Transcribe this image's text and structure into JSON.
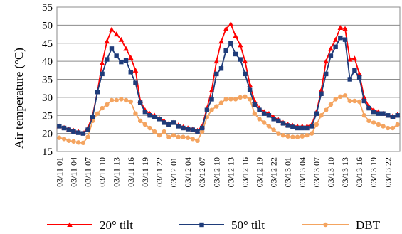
{
  "chart_data": {
    "type": "line",
    "ylabel": "Air temperature (°C)",
    "xlabel": "",
    "ylim": [
      15,
      55
    ],
    "yticks": [
      15,
      20,
      25,
      30,
      35,
      40,
      45,
      50,
      55
    ],
    "grid": true,
    "legend_position": "bottom",
    "x": [
      "03/11 01",
      "03/11 02",
      "03/11 03",
      "03/11 04",
      "03/11 05",
      "03/11 06",
      "03/11 07",
      "03/11 08",
      "03/11 09",
      "03/11 10",
      "03/11 11",
      "03/11 12",
      "03/11 13",
      "03/11 14",
      "03/11 15",
      "03/11 16",
      "03/11 17",
      "03/11 18",
      "03/11 19",
      "03/11 20",
      "03/11 21",
      "03/11 22",
      "03/11 23",
      "03/11 24",
      "03/12 01",
      "03/12 02",
      "03/12 03",
      "03/12 04",
      "03/12 05",
      "03/12 06",
      "03/12 07",
      "03/12 08",
      "03/12 09",
      "03/12 10",
      "03/12 11",
      "03/12 12",
      "03/12 13",
      "03/12 14",
      "03/12 15",
      "03/12 16",
      "03/12 17",
      "03/12 18",
      "03/12 19",
      "03/12 20",
      "03/12 21",
      "03/12 22",
      "03/12 23",
      "03/12 24",
      "03/13 01",
      "03/13 02",
      "03/13 03",
      "03/13 04",
      "03/13 05",
      "03/13 06",
      "03/13 07",
      "03/13 08",
      "03/13 09",
      "03/13 10",
      "03/13 11",
      "03/13 12",
      "03/13 13",
      "03/13 14",
      "03/13 15",
      "03/13 16",
      "03/13 17",
      "03/13 18",
      "03/13 19",
      "03/13 20",
      "03/13 21",
      "03/13 22",
      "03/13 23",
      "03/13 24"
    ],
    "xtick_labels": [
      "03/11 01",
      "03/11 04",
      "03/11 07",
      "03/11 10",
      "03/11 13",
      "03/11 16",
      "03/11 19",
      "03/11 22",
      "03/12 01",
      "03/12 04",
      "03/12 07",
      "03/12 10",
      "03/12 13",
      "03/12 16",
      "03/12 19",
      "03/12 22",
      "03/13 01",
      "03/13 04",
      "03/13 07",
      "03/13 10",
      "03/13 13",
      "03/13 16",
      "03/13 19",
      "03/13 22"
    ],
    "series": [
      {
        "name": "20° tilt",
        "color": "#ff0000",
        "marker": "triangle",
        "values": [
          22.0,
          21.6,
          21.2,
          20.8,
          20.5,
          20.2,
          21.5,
          25.0,
          31.5,
          39.5,
          45.5,
          48.8,
          47.5,
          46.0,
          43.5,
          41.0,
          37.5,
          29.0,
          26.5,
          25.5,
          25.0,
          24.2,
          23.5,
          22.8,
          23.0,
          22.3,
          21.8,
          21.5,
          21.2,
          20.8,
          22.0,
          27.0,
          32.0,
          40.0,
          45.5,
          49.0,
          50.3,
          47.0,
          44.5,
          40.0,
          33.5,
          29.0,
          27.0,
          26.0,
          25.5,
          24.5,
          23.8,
          23.0,
          22.5,
          22.2,
          22.0,
          22.0,
          22.0,
          22.5,
          26.0,
          32.0,
          40.0,
          43.5,
          46.0,
          49.3,
          49.0,
          40.5,
          40.8,
          36.5,
          30.0,
          27.5,
          26.5,
          26.0,
          25.5,
          25.0,
          24.8,
          25.2
        ]
      },
      {
        "name": "50° tilt",
        "color": "#1f3c7a",
        "marker": "square",
        "values": [
          22.0,
          21.5,
          21.0,
          20.5,
          20.2,
          20.0,
          21.0,
          24.5,
          31.5,
          36.5,
          40.5,
          43.5,
          41.5,
          39.8,
          40.2,
          37.0,
          34.0,
          28.5,
          26.0,
          25.0,
          24.5,
          24.0,
          23.0,
          22.5,
          23.0,
          22.0,
          21.5,
          21.2,
          21.0,
          20.5,
          21.5,
          26.5,
          29.5,
          36.5,
          38.0,
          43.0,
          45.0,
          42.0,
          40.5,
          36.5,
          32.0,
          28.0,
          26.5,
          25.5,
          25.0,
          24.0,
          23.5,
          22.8,
          22.2,
          21.8,
          21.5,
          21.5,
          21.5,
          22.0,
          25.5,
          31.0,
          36.5,
          41.5,
          44.0,
          46.5,
          46.0,
          35.0,
          37.5,
          35.5,
          29.0,
          27.0,
          26.0,
          25.5,
          25.5,
          25.0,
          24.5,
          25.0
        ]
      },
      {
        "name": "DBT",
        "color": "#f4a460",
        "marker": "circle",
        "values": [
          18.8,
          18.5,
          18.0,
          17.8,
          17.5,
          17.4,
          19.0,
          23.5,
          25.5,
          27.0,
          28.0,
          29.2,
          29.2,
          29.5,
          29.2,
          28.8,
          25.5,
          23.5,
          22.5,
          21.5,
          20.5,
          19.5,
          20.5,
          19.0,
          19.5,
          19.0,
          19.0,
          18.8,
          18.5,
          18.0,
          20.5,
          24.5,
          26.5,
          27.5,
          28.5,
          29.5,
          29.5,
          29.5,
          30.0,
          30.2,
          29.5,
          25.5,
          24.0,
          23.0,
          22.0,
          21.0,
          20.0,
          19.5,
          19.2,
          19.0,
          19.0,
          19.2,
          19.5,
          20.0,
          22.5,
          25.0,
          26.5,
          28.0,
          29.5,
          30.2,
          30.5,
          29.0,
          29.0,
          28.8,
          25.0,
          23.5,
          23.0,
          22.5,
          22.0,
          21.5,
          21.5,
          22.5
        ]
      }
    ]
  }
}
